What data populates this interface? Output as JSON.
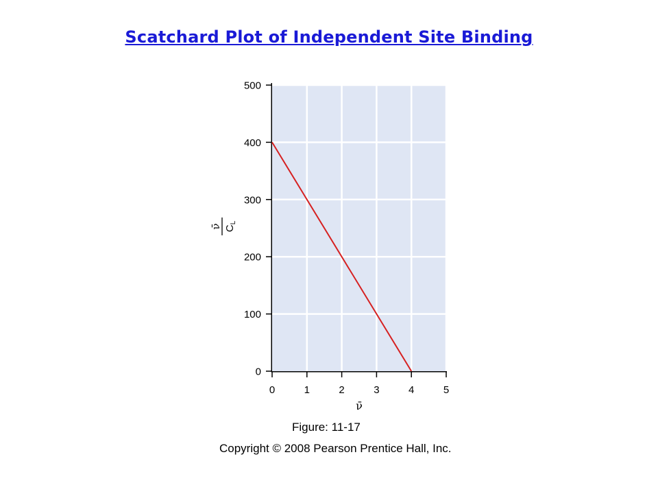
{
  "title": "Scatchard Plot of Independent Site Binding",
  "figure_label": "Figure: 11-17",
  "copyright": "Copyright © 2008 Pearson Prentice Hall, Inc.",
  "colors": {
    "title": "#1a1ad6",
    "plot_background": "#dfe6f4",
    "line": "#d62020",
    "axis": "#000000",
    "grid": "#ffffff"
  },
  "chart_data": {
    "type": "line",
    "title": "",
    "xlabel": "ν̄",
    "ylabel_numerator": "ν̄",
    "ylabel_denominator": "C",
    "ylabel_denominator_subscript": "L",
    "xlim": [
      0,
      5
    ],
    "ylim": [
      0,
      500
    ],
    "x_ticks": [
      0,
      1,
      2,
      3,
      4,
      5
    ],
    "y_ticks": [
      0,
      100,
      200,
      300,
      400,
      500
    ],
    "grid": true,
    "series": [
      {
        "x": [
          0,
          4
        ],
        "y": [
          400,
          0
        ]
      }
    ]
  }
}
